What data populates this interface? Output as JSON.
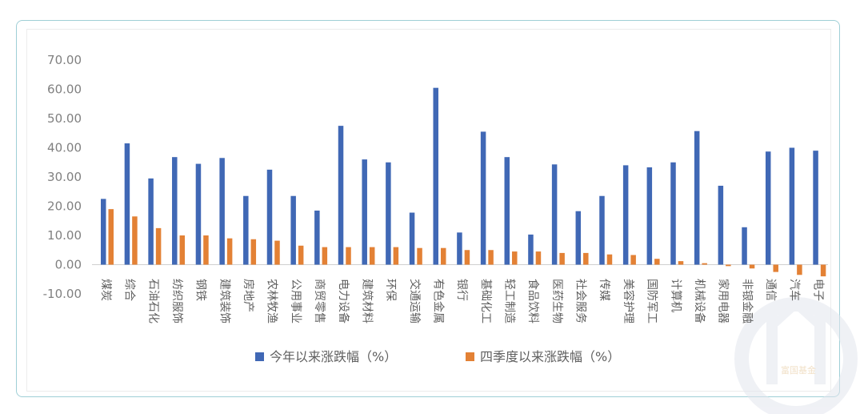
{
  "chart_data": {
    "type": "bar",
    "categories": [
      "煤炭",
      "综合",
      "石油石化",
      "纺织服饰",
      "钢铁",
      "建筑装饰",
      "房地产",
      "农林牧渔",
      "公用事业",
      "商贸零售",
      "电力设备",
      "建筑材料",
      "环保",
      "交通运输",
      "有色金属",
      "银行",
      "基础化工",
      "轻工制造",
      "食品饮料",
      "医药生物",
      "社会服务",
      "传媒",
      "美容护理",
      "国防军工",
      "计算机",
      "机械设备",
      "家用电器",
      "非银金融",
      "通信",
      "汽车",
      "电子"
    ],
    "series": [
      {
        "name": "今年以来涨跌幅（%）",
        "color": "#4068b5",
        "values": [
          22.5,
          41.5,
          29.5,
          36.8,
          34.5,
          36.5,
          23.5,
          32.5,
          23.5,
          18.5,
          47.5,
          36.0,
          35.0,
          17.8,
          60.5,
          11.0,
          45.5,
          36.8,
          10.3,
          34.3,
          18.3,
          23.5,
          34.0,
          33.3,
          35.0,
          45.7,
          27.0,
          12.8,
          38.7,
          40.0,
          39.0
        ]
      },
      {
        "name": "四季度以来涨跌幅（%）",
        "color": "#e38135",
        "values": [
          19.0,
          16.5,
          12.5,
          10.0,
          10.0,
          9.0,
          8.7,
          8.2,
          6.5,
          6.0,
          6.0,
          6.0,
          6.0,
          5.7,
          5.7,
          5.0,
          5.0,
          4.5,
          4.5,
          4.0,
          4.0,
          3.5,
          3.3,
          2.0,
          1.2,
          0.5,
          -0.5,
          -1.3,
          -2.5,
          -3.5,
          -4.0
        ]
      }
    ],
    "yticks": [
      "70.00",
      "60.00",
      "50.00",
      "40.00",
      "30.00",
      "20.00",
      "10.00",
      "0.00",
      "-10.00"
    ],
    "ylim": [
      -10,
      70
    ],
    "legend_position": "bottom"
  },
  "watermark": {
    "text": "富国基金",
    "color": "#e6c79a"
  }
}
